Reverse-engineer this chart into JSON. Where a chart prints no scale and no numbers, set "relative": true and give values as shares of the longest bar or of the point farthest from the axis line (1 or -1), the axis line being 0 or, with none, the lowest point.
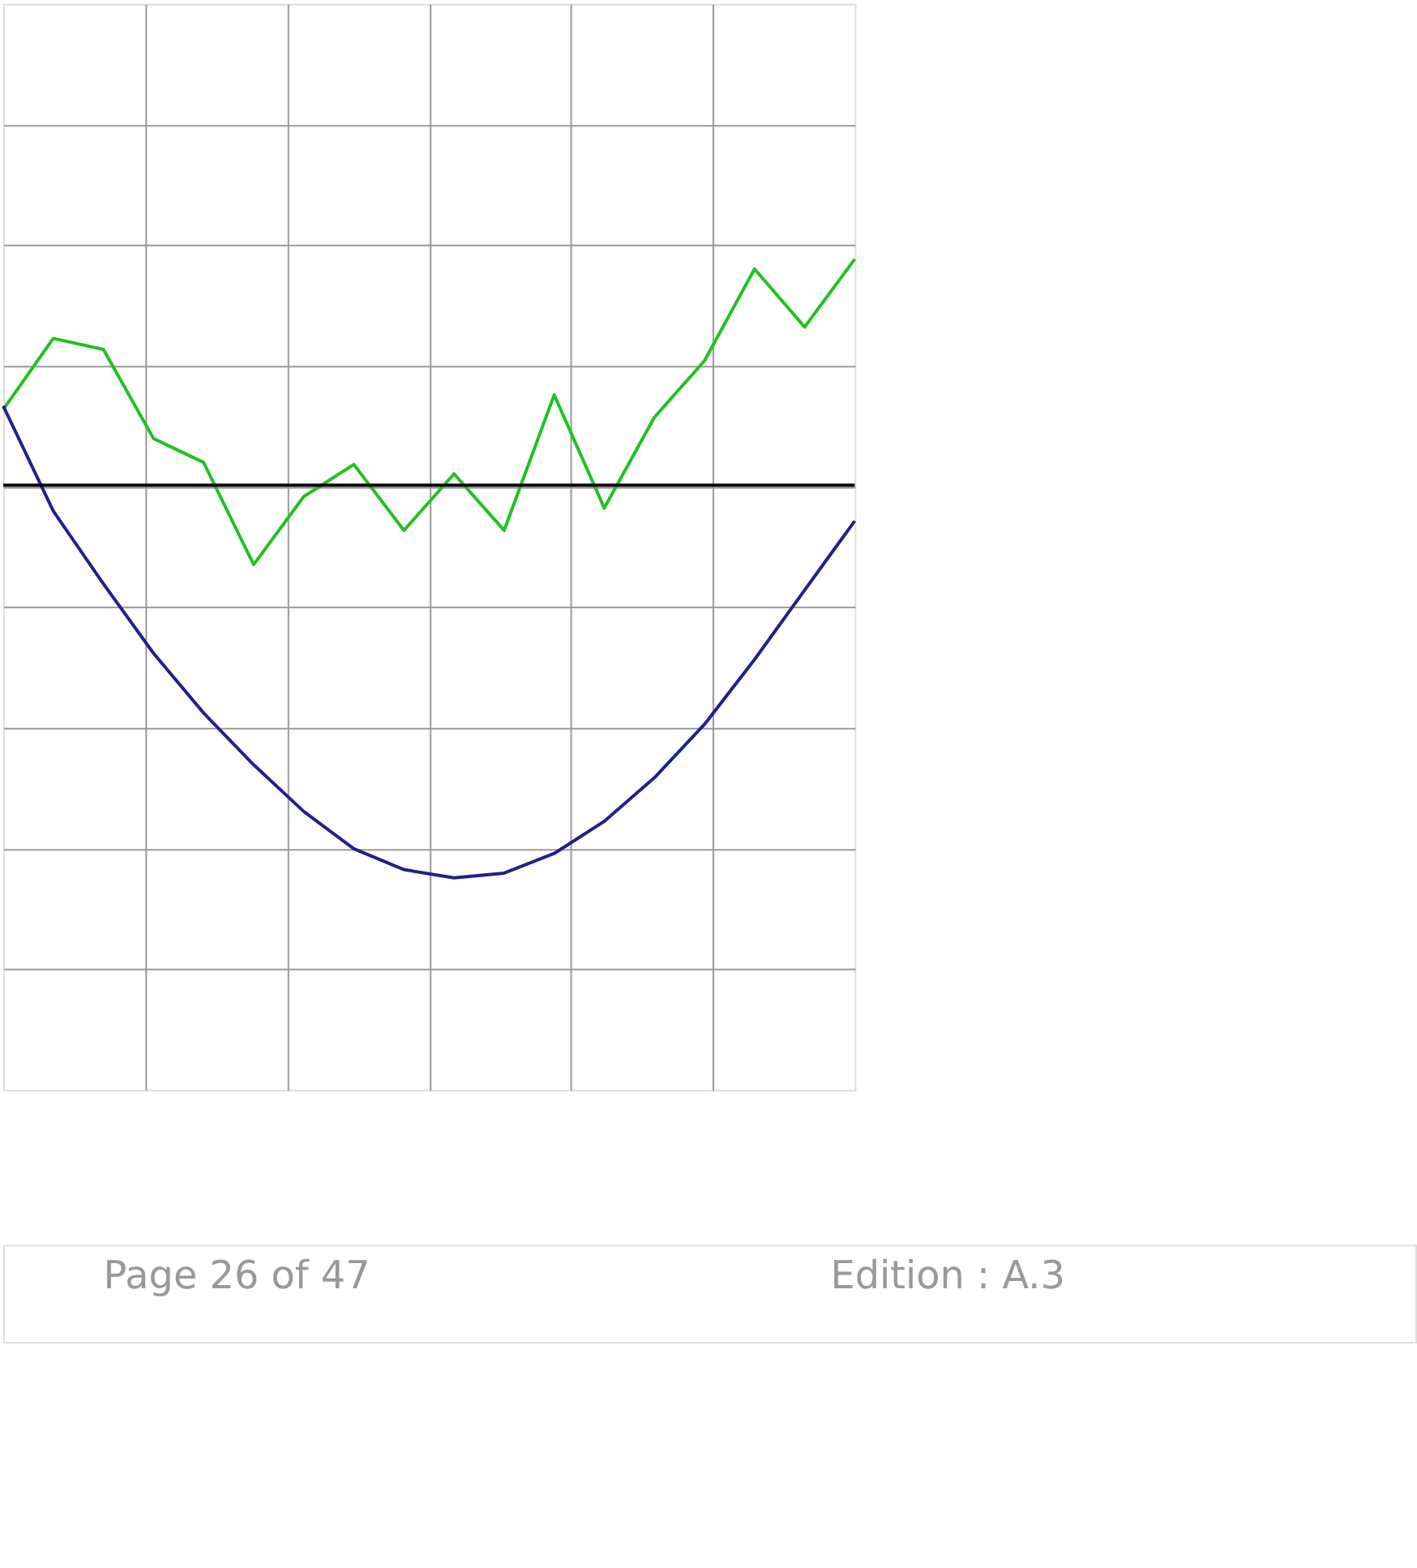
{
  "chart_data": {
    "type": "line",
    "relative": true,
    "grid": true,
    "legend": false,
    "categories": [
      null,
      null,
      null,
      null,
      null,
      null,
      null,
      null,
      null,
      null,
      null,
      null,
      null,
      null,
      null,
      null,
      null,
      null
    ],
    "series": [
      {
        "color": "#22c022",
        "values": [
          0.193,
          0.374,
          0.346,
          0.119,
          0.058,
          -0.202,
          -0.029,
          0.053,
          -0.115,
          0.029,
          -0.115,
          0.23,
          -0.058,
          0.173,
          0.317,
          0.551,
          0.403,
          0.576
        ]
      },
      {
        "color": "#20208c",
        "values": [
          0.202,
          -0.066,
          -0.251,
          -0.428,
          -0.58,
          -0.712,
          -0.831,
          -0.926,
          -0.979,
          -1,
          -0.988,
          -0.938,
          -0.856,
          -0.745,
          -0.609,
          -0.444,
          -0.267,
          -0.091
        ]
      }
    ],
    "annotations": [
      "Page 26 of 47",
      "Edition : A.3"
    ]
  }
}
